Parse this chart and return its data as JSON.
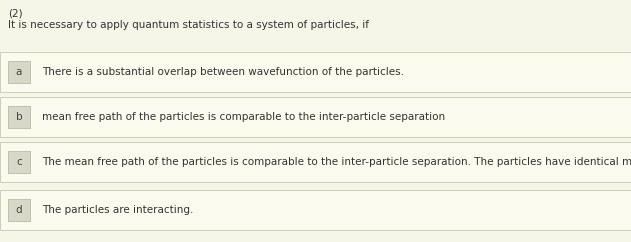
{
  "question_number": "(2)",
  "question_text": "It is necessary to apply quantum statistics to a system of particles, if",
  "options": [
    {
      "label": "a",
      "text": "There is a substantial overlap between wavefunction of the particles."
    },
    {
      "label": "b",
      "text": "mean free path of the particles is comparable to the inter-particle separation"
    },
    {
      "label": "c",
      "text": "The mean free path of the particles is comparable to the inter-particle separation. The particles have identical mass and charge."
    },
    {
      "label": "d",
      "text": "The particles are interacting."
    }
  ],
  "bg_color": "#f5f5e8",
  "option_row_bg": "#fafaee",
  "option_row_border": "#c8c8b0",
  "label_box_bg": "#d8d8c8",
  "label_box_border": "#b0b0a0",
  "text_color": "#333333",
  "label_color": "#444444",
  "question_color": "#333333",
  "font_size": 7.5,
  "label_font_size": 7.5,
  "fig_width": 6.31,
  "fig_height": 2.42,
  "dpi": 100
}
